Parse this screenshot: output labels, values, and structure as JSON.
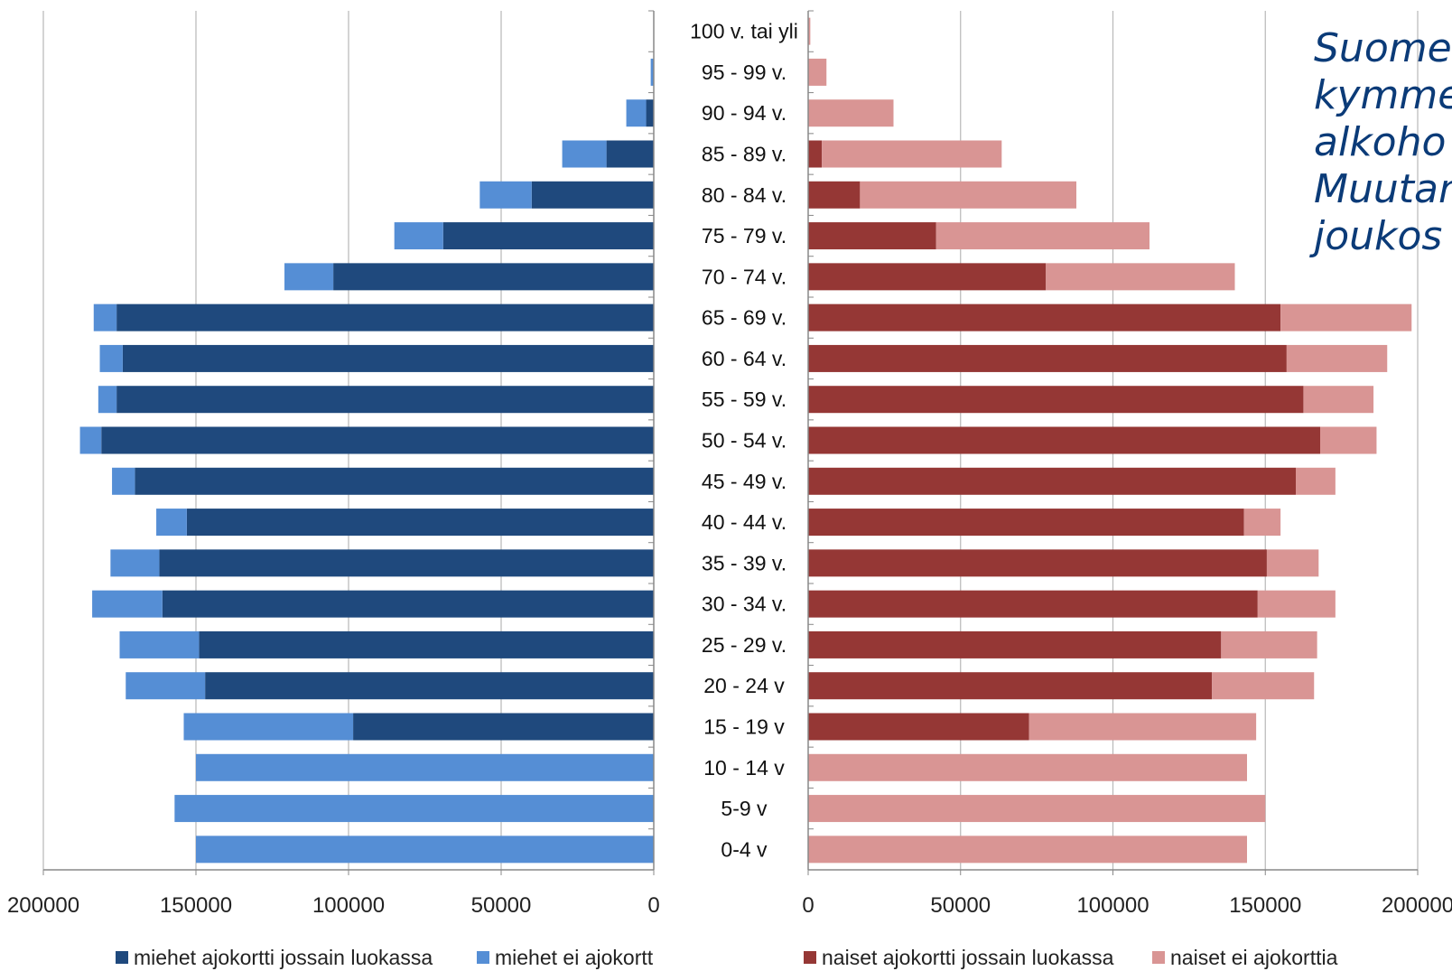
{
  "note_lines": [
    "Suome",
    "kymme",
    "alkoho",
    "Muutan",
    "joukos"
  ],
  "chart_data": {
    "type": "bar",
    "orientation": "horizontal",
    "layout": "population pyramid (two mirrored stacked bar charts)",
    "categories": [
      "100 v. tai yli",
      "95 - 99 v.",
      "90 - 94 v.",
      "85 - 89 v.",
      "80 - 84 v.",
      "75 - 79 v.",
      "70 - 74 v.",
      "65 - 69 v.",
      "60 - 64 v.",
      "55 - 59 v.",
      "50 - 54 v.",
      "45 - 49 v.",
      "40 - 44 v.",
      "35 - 39 v.",
      "30 - 34 v.",
      "25 - 29 v.",
      "20 - 24 v",
      "15 - 19 v",
      "10 - 14 v",
      "5-9 v",
      "0-4 v"
    ],
    "left": {
      "xlim": [
        200000,
        0
      ],
      "ticks": [
        "200000",
        "150000",
        "100000",
        "50000",
        "0"
      ],
      "series": [
        {
          "name": "miehet ajokortti jossain luokassa",
          "color": "#1f497d",
          "values": [
            0,
            0,
            2500,
            15500,
            40000,
            69000,
            105000,
            176000,
            174000,
            176000,
            181000,
            170000,
            153000,
            162000,
            161000,
            149000,
            147000,
            98500,
            0,
            0,
            0
          ]
        },
        {
          "name": "miehet ei ajokortt",
          "color": "#558ed5",
          "values": [
            150,
            1000,
            6500,
            14500,
            17000,
            16000,
            16000,
            7500,
            7500,
            6000,
            7000,
            7500,
            10000,
            16000,
            23000,
            26000,
            26000,
            55500,
            150000,
            157000,
            150000
          ]
        }
      ]
    },
    "right": {
      "xlim": [
        0,
        200000
      ],
      "ticks": [
        "0",
        "50000",
        "100000",
        "150000",
        "200000"
      ],
      "series": [
        {
          "name": "naiset ajokortti jossain luokassa",
          "color": "#953735",
          "values": [
            0,
            0,
            0,
            4500,
            17000,
            42000,
            78000,
            155000,
            157000,
            162500,
            168000,
            160000,
            143000,
            150500,
            147500,
            135500,
            132500,
            72500,
            0,
            0,
            0
          ]
        },
        {
          "name": "naiset ei ajokorttia",
          "color": "#d99594",
          "values": [
            700,
            6000,
            28000,
            59000,
            71000,
            70000,
            62000,
            43000,
            33000,
            23000,
            18500,
            13000,
            12000,
            17000,
            25500,
            31500,
            33500,
            74500,
            144000,
            150000,
            144000
          ]
        }
      ]
    }
  }
}
